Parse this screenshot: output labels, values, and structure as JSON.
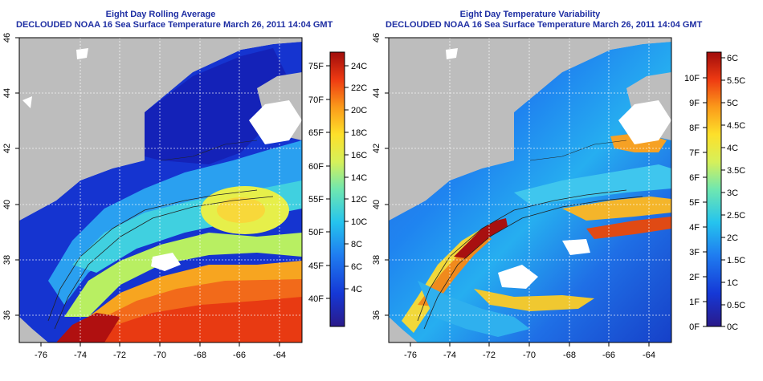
{
  "colors": {
    "land": "#bdbdbd",
    "title": "#1f2fa3",
    "sst_ramp": [
      "#2a1a8a",
      "#1538d6",
      "#1f7df0",
      "#25c4ee",
      "#6fe7b0",
      "#d6f05a",
      "#fde02a",
      "#fb9a1a",
      "#ee3a12",
      "#a00c0c"
    ]
  },
  "panels": [
    {
      "id": "rolling-average",
      "title_line1": "Eight Day Rolling Average",
      "title_line2": "DECLOUDED NOAA 16 Sea Surface Temperature March 26, 2011 14:04 GMT",
      "lon_ticks": [
        "-76",
        "-74",
        "-72",
        "-70",
        "-68",
        "-66",
        "-64"
      ],
      "lat_ticks": [
        "36",
        "38",
        "40",
        "42",
        "44",
        "46"
      ],
      "colorbar_f": [
        "75F",
        "70F",
        "65F",
        "60F",
        "55F",
        "50F",
        "45F",
        "40F"
      ],
      "colorbar_c": [
        "24C",
        "22C",
        "20C",
        "18C",
        "16C",
        "14C",
        "12C",
        "10C",
        "8C",
        "6C",
        "4C"
      ]
    },
    {
      "id": "temperature-variability",
      "title_line1": "Eight Day Temperature Variability",
      "title_line2": "DECLOUDED NOAA 16 Sea Surface Temperature March 26, 2011 14:04 GMT",
      "lon_ticks": [
        "-76",
        "-74",
        "-72",
        "-70",
        "-68",
        "-66",
        "-64"
      ],
      "lat_ticks": [
        "36",
        "38",
        "40",
        "42",
        "44",
        "46"
      ],
      "colorbar_f": [
        "10F",
        "9F",
        "8F",
        "7F",
        "6F",
        "5F",
        "4F",
        "3F",
        "2F",
        "1F",
        "0F"
      ],
      "colorbar_c": [
        "6C",
        "5.5C",
        "5C",
        "4.5C",
        "4C",
        "3.5C",
        "3C",
        "2.5C",
        "2C",
        "1.5C",
        "1C",
        "0.5C",
        "0C"
      ]
    }
  ]
}
